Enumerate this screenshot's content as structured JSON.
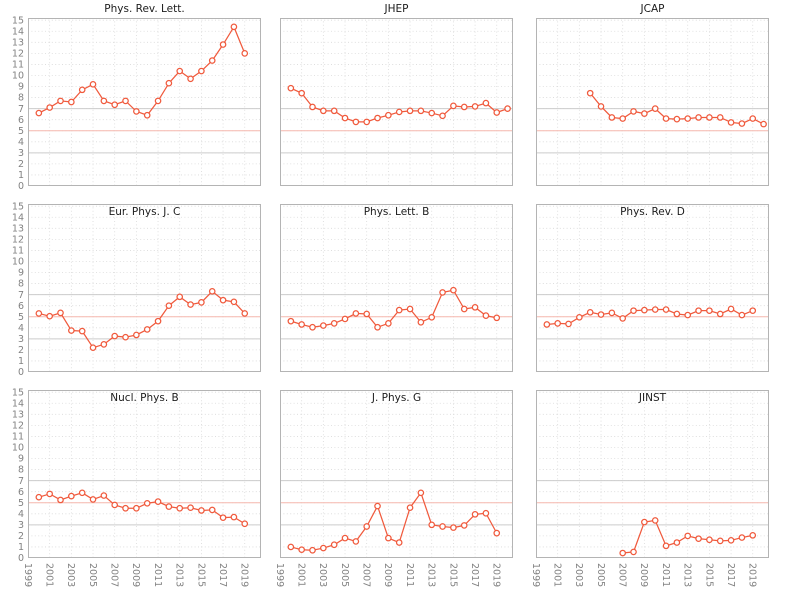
{
  "figure": {
    "background": "#ffffff",
    "line_color": "#f05a3d",
    "marker_fill": "#ffffff",
    "grid_color": "#d9d9d9",
    "spine_color": "#b4b4b4",
    "tick_label_color": "#828282",
    "title_color": "#1c1c1c",
    "xlim": [
      1999,
      2020.5
    ],
    "ylim": [
      0,
      15.2
    ],
    "x_ticks": [
      1999,
      2001,
      2003,
      2005,
      2007,
      2009,
      2011,
      2013,
      2015,
      2017,
      2019
    ],
    "y_ticks": [
      0,
      1,
      2,
      3,
      4,
      5,
      6,
      7,
      8,
      9,
      10,
      11,
      12,
      13,
      14,
      15
    ],
    "reference_lines": [
      {
        "y": 7,
        "color": "#cccccc"
      },
      {
        "y": 5,
        "color": "#f5b7ae"
      },
      {
        "y": 3,
        "color": "#cccccc"
      }
    ],
    "grid": "dotted",
    "legend": "none"
  },
  "chart_data": [
    {
      "type": "line",
      "title": "Phys. Rev. Lett.",
      "xlabel": "",
      "ylabel": "",
      "years": [
        2000,
        2001,
        2002,
        2003,
        2004,
        2005,
        2006,
        2007,
        2008,
        2009,
        2010,
        2011,
        2012,
        2013,
        2014,
        2015,
        2016,
        2017,
        2018,
        2019
      ],
      "values": [
        6.6,
        7.1,
        7.7,
        7.6,
        8.7,
        9.2,
        7.7,
        7.35,
        7.7,
        6.75,
        6.4,
        7.7,
        9.3,
        10.4,
        9.7,
        10.4,
        11.35,
        12.8,
        14.4,
        12.0
      ]
    },
    {
      "type": "line",
      "title": "JHEP",
      "xlabel": "",
      "ylabel": "",
      "years": [
        2000,
        2001,
        2002,
        2003,
        2004,
        2005,
        2006,
        2007,
        2008,
        2009,
        2010,
        2011,
        2012,
        2013,
        2014,
        2015,
        2016,
        2017,
        2018,
        2019,
        2020
      ],
      "values": [
        8.85,
        8.4,
        7.15,
        6.8,
        6.8,
        6.15,
        5.8,
        5.8,
        6.15,
        6.4,
        6.7,
        6.8,
        6.8,
        6.6,
        6.35,
        7.25,
        7.15,
        7.2,
        7.5,
        6.65,
        7.0
      ]
    },
    {
      "type": "line",
      "title": "JCAP",
      "xlabel": "",
      "ylabel": "",
      "years": [
        2004,
        2005,
        2006,
        2007,
        2008,
        2009,
        2010,
        2011,
        2012,
        2013,
        2014,
        2015,
        2016,
        2017,
        2018,
        2019,
        2020
      ],
      "values": [
        8.4,
        7.2,
        6.2,
        6.1,
        6.75,
        6.55,
        7.0,
        6.1,
        6.05,
        6.1,
        6.2,
        6.2,
        6.2,
        5.75,
        5.65,
        6.1,
        5.6
      ]
    },
    {
      "type": "line",
      "title": "Eur. Phys. J. C",
      "xlabel": "",
      "ylabel": "",
      "years": [
        2000,
        2001,
        2002,
        2003,
        2004,
        2005,
        2006,
        2007,
        2008,
        2009,
        2010,
        2011,
        2012,
        2013,
        2014,
        2015,
        2016,
        2017,
        2018,
        2019
      ],
      "values": [
        5.3,
        5.05,
        5.35,
        3.75,
        3.7,
        2.2,
        2.5,
        3.25,
        3.15,
        3.35,
        3.85,
        4.6,
        6.0,
        6.8,
        6.1,
        6.3,
        7.3,
        6.5,
        6.35,
        5.3
      ]
    },
    {
      "type": "line",
      "title": "Phys. Lett. B",
      "xlabel": "",
      "ylabel": "",
      "years": [
        2000,
        2001,
        2002,
        2003,
        2004,
        2005,
        2006,
        2007,
        2008,
        2009,
        2010,
        2011,
        2012,
        2013,
        2014,
        2015,
        2016,
        2017,
        2018,
        2019
      ],
      "values": [
        4.6,
        4.3,
        4.05,
        4.2,
        4.4,
        4.8,
        5.3,
        5.25,
        4.05,
        4.4,
        5.6,
        5.7,
        4.5,
        4.95,
        7.2,
        7.4,
        5.7,
        5.85,
        5.1,
        4.9
      ]
    },
    {
      "type": "line",
      "title": "Phys. Rev. D",
      "xlabel": "",
      "ylabel": "",
      "years": [
        2000,
        2001,
        2002,
        2003,
        2004,
        2005,
        2006,
        2007,
        2008,
        2009,
        2010,
        2011,
        2012,
        2013,
        2014,
        2015,
        2016,
        2017,
        2018,
        2019
      ],
      "values": [
        4.3,
        4.4,
        4.35,
        4.95,
        5.4,
        5.2,
        5.35,
        4.85,
        5.55,
        5.6,
        5.65,
        5.65,
        5.25,
        5.15,
        5.55,
        5.55,
        5.25,
        5.7,
        5.15,
        5.55
      ]
    },
    {
      "type": "line",
      "title": "Nucl. Phys. B",
      "xlabel": "",
      "ylabel": "",
      "years": [
        2000,
        2001,
        2002,
        2003,
        2004,
        2005,
        2006,
        2007,
        2008,
        2009,
        2010,
        2011,
        2012,
        2013,
        2014,
        2015,
        2016,
        2017,
        2018,
        2019
      ],
      "values": [
        5.5,
        5.8,
        5.25,
        5.6,
        5.9,
        5.3,
        5.65,
        4.8,
        4.5,
        4.5,
        4.95,
        5.1,
        4.65,
        4.5,
        4.55,
        4.3,
        4.35,
        3.65,
        3.7,
        3.1
      ]
    },
    {
      "type": "line",
      "title": "J. Phys. G",
      "xlabel": "",
      "ylabel": "",
      "years": [
        2000,
        2001,
        2002,
        2003,
        2004,
        2005,
        2006,
        2007,
        2008,
        2009,
        2010,
        2011,
        2012,
        2013,
        2014,
        2015,
        2016,
        2017,
        2018,
        2019
      ],
      "values": [
        1.0,
        0.75,
        0.7,
        0.9,
        1.2,
        1.8,
        1.5,
        2.85,
        4.7,
        1.8,
        1.4,
        4.55,
        5.9,
        3.0,
        2.85,
        2.75,
        2.95,
        3.95,
        4.05,
        2.25
      ]
    },
    {
      "type": "line",
      "title": "JINST",
      "xlabel": "",
      "ylabel": "",
      "years": [
        2007,
        2008,
        2009,
        2010,
        2011,
        2012,
        2013,
        2014,
        2015,
        2016,
        2017,
        2018,
        2019
      ],
      "values": [
        0.45,
        0.55,
        3.25,
        3.4,
        1.1,
        1.4,
        2.0,
        1.75,
        1.65,
        1.55,
        1.6,
        1.85,
        2.05
      ]
    }
  ]
}
